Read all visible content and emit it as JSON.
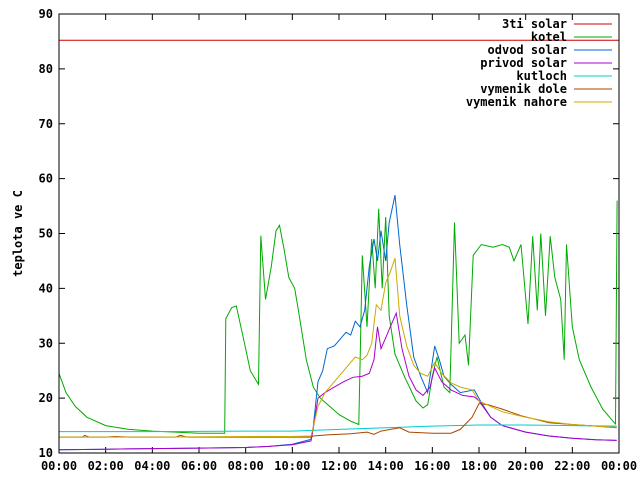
{
  "chart_data": {
    "type": "line",
    "title": "",
    "xlabel": "",
    "ylabel": "teplota ve C",
    "xlim": [
      "00:00",
      "24:00"
    ],
    "ylim": [
      10,
      90
    ],
    "grid": false,
    "legend_placement": "top-right",
    "x_ticks": [
      "00:00",
      "02:00",
      "04:00",
      "06:00",
      "08:00",
      "10:00",
      "12:00",
      "14:00",
      "16:00",
      "18:00",
      "20:00",
      "22:00",
      "00:00"
    ],
    "y_ticks": [
      10,
      20,
      30,
      40,
      50,
      60,
      70,
      80,
      90
    ],
    "series": [
      {
        "name": "3ti solar",
        "color": "#cc0000",
        "points": [
          [
            0,
            85.2
          ],
          [
            24,
            85.2
          ]
        ]
      },
      {
        "name": "kotel",
        "color": "#00aa00",
        "points": [
          [
            0,
            24.5
          ],
          [
            0.3,
            21
          ],
          [
            0.7,
            18.5
          ],
          [
            1.2,
            16.5
          ],
          [
            2,
            15
          ],
          [
            3,
            14.3
          ],
          [
            4,
            14
          ],
          [
            5,
            13.8
          ],
          [
            6,
            13.6
          ],
          [
            7.1,
            13.6
          ],
          [
            7.15,
            34.5
          ],
          [
            7.4,
            36.5
          ],
          [
            7.6,
            36.8
          ],
          [
            7.9,
            31
          ],
          [
            8.2,
            25
          ],
          [
            8.55,
            22.5
          ],
          [
            8.65,
            49.6
          ],
          [
            8.85,
            38
          ],
          [
            9.1,
            44
          ],
          [
            9.3,
            50.5
          ],
          [
            9.45,
            51.5
          ],
          [
            9.65,
            47
          ],
          [
            9.85,
            42
          ],
          [
            10.1,
            40
          ],
          [
            10.3,
            35
          ],
          [
            10.6,
            27
          ],
          [
            10.9,
            22
          ],
          [
            11.2,
            20
          ],
          [
            11.6,
            18.5
          ],
          [
            12,
            17
          ],
          [
            12.5,
            15.8
          ],
          [
            12.85,
            15.2
          ],
          [
            13,
            46
          ],
          [
            13.2,
            33
          ],
          [
            13.4,
            49
          ],
          [
            13.55,
            40
          ],
          [
            13.7,
            54.5
          ],
          [
            13.85,
            40
          ],
          [
            14,
            53
          ],
          [
            14.15,
            35
          ],
          [
            14.4,
            28
          ],
          [
            14.8,
            24
          ],
          [
            15.3,
            19.5
          ],
          [
            15.6,
            18.2
          ],
          [
            15.8,
            18.8
          ],
          [
            16,
            24
          ],
          [
            16.2,
            27.5
          ],
          [
            16.5,
            22
          ],
          [
            16.75,
            21
          ],
          [
            16.95,
            52
          ],
          [
            17.15,
            30
          ],
          [
            17.4,
            31.5
          ],
          [
            17.55,
            26
          ],
          [
            17.75,
            46
          ],
          [
            18.1,
            48
          ],
          [
            18.6,
            47.5
          ],
          [
            19,
            48
          ],
          [
            19.3,
            47.5
          ],
          [
            19.5,
            45
          ],
          [
            19.8,
            48
          ],
          [
            20.1,
            33.5
          ],
          [
            20.3,
            49.5
          ],
          [
            20.5,
            36
          ],
          [
            20.65,
            50
          ],
          [
            20.85,
            35
          ],
          [
            21.05,
            49.5
          ],
          [
            21.25,
            42
          ],
          [
            21.5,
            38
          ],
          [
            21.65,
            27
          ],
          [
            21.75,
            48
          ],
          [
            22,
            33
          ],
          [
            22.3,
            27
          ],
          [
            22.8,
            22
          ],
          [
            23.3,
            18
          ],
          [
            23.8,
            15.5
          ],
          [
            23.85,
            15.3
          ],
          [
            23.92,
            56
          ]
        ]
      },
      {
        "name": "odvod solar",
        "color": "#0066cc",
        "points": [
          [
            0,
            10.6
          ],
          [
            2,
            10.7
          ],
          [
            4,
            10.8
          ],
          [
            6,
            10.9
          ],
          [
            8,
            11
          ],
          [
            9,
            11.2
          ],
          [
            10,
            11.6
          ],
          [
            10.8,
            12.5
          ],
          [
            10.9,
            14.8
          ],
          [
            11.1,
            23
          ],
          [
            11.3,
            25
          ],
          [
            11.5,
            29
          ],
          [
            11.8,
            29.5
          ],
          [
            12.1,
            31
          ],
          [
            12.3,
            32
          ],
          [
            12.5,
            31.5
          ],
          [
            12.7,
            34
          ],
          [
            12.9,
            33
          ],
          [
            13.1,
            36
          ],
          [
            13.3,
            44
          ],
          [
            13.5,
            49
          ],
          [
            13.65,
            45
          ],
          [
            13.8,
            50.5
          ],
          [
            14,
            45
          ],
          [
            14.15,
            52
          ],
          [
            14.3,
            55
          ],
          [
            14.4,
            57
          ],
          [
            14.6,
            48
          ],
          [
            14.9,
            37
          ],
          [
            15.2,
            27.5
          ],
          [
            15.5,
            24
          ],
          [
            15.8,
            21
          ],
          [
            16.1,
            29.5
          ],
          [
            16.3,
            27
          ],
          [
            16.5,
            24
          ],
          [
            16.8,
            22.5
          ],
          [
            17.2,
            21
          ],
          [
            17.8,
            21.5
          ],
          [
            18.1,
            19.2
          ],
          [
            18.5,
            16.5
          ],
          [
            19,
            15
          ],
          [
            20,
            13.8
          ],
          [
            21,
            13.1
          ],
          [
            22,
            12.7
          ],
          [
            23,
            12.4
          ],
          [
            23.9,
            12.3
          ]
        ]
      },
      {
        "name": "privod solar",
        "color": "#aa00cc",
        "points": [
          [
            0,
            10.6
          ],
          [
            2,
            10.7
          ],
          [
            4,
            10.8
          ],
          [
            6,
            10.9
          ],
          [
            8,
            11
          ],
          [
            9,
            11.2
          ],
          [
            10,
            11.5
          ],
          [
            10.8,
            12.2
          ],
          [
            10.9,
            14.5
          ],
          [
            11.1,
            20
          ],
          [
            11.4,
            21
          ],
          [
            11.8,
            22
          ],
          [
            12.2,
            23
          ],
          [
            12.6,
            23.8
          ],
          [
            13,
            24
          ],
          [
            13.3,
            24.5
          ],
          [
            13.5,
            27
          ],
          [
            13.65,
            33
          ],
          [
            13.8,
            29
          ],
          [
            14,
            31
          ],
          [
            14.2,
            33
          ],
          [
            14.45,
            35.5
          ],
          [
            14.7,
            29
          ],
          [
            15,
            24
          ],
          [
            15.3,
            21.5
          ],
          [
            15.6,
            20.5
          ],
          [
            15.9,
            22
          ],
          [
            16.1,
            25.5
          ],
          [
            16.4,
            23
          ],
          [
            16.8,
            21.5
          ],
          [
            17.3,
            20.5
          ],
          [
            17.8,
            20.2
          ],
          [
            18,
            19.5
          ],
          [
            18.5,
            16.5
          ],
          [
            19,
            15
          ],
          [
            20,
            13.8
          ],
          [
            21,
            13.1
          ],
          [
            22,
            12.7
          ],
          [
            23,
            12.4
          ],
          [
            23.9,
            12.3
          ]
        ]
      },
      {
        "name": "kutloch",
        "color": "#00cccc",
        "points": [
          [
            0,
            13.9
          ],
          [
            4,
            13.9
          ],
          [
            8,
            14
          ],
          [
            10,
            14
          ],
          [
            12,
            14.3
          ],
          [
            14,
            14.6
          ],
          [
            16,
            14.9
          ],
          [
            18,
            15.1
          ],
          [
            20,
            15.1
          ],
          [
            22,
            15
          ],
          [
            23.9,
            14.9
          ]
        ]
      },
      {
        "name": "vymenik dole",
        "color": "#aa4400",
        "points": [
          [
            0,
            12.9
          ],
          [
            1,
            12.9
          ],
          [
            1.1,
            13.2
          ],
          [
            1.3,
            12.9
          ],
          [
            2,
            12.9
          ],
          [
            2.4,
            13
          ],
          [
            3,
            12.9
          ],
          [
            5,
            12.9
          ],
          [
            5.2,
            13.2
          ],
          [
            5.5,
            12.9
          ],
          [
            8,
            12.9
          ],
          [
            10,
            12.9
          ],
          [
            10.8,
            12.9
          ],
          [
            10.9,
            13.1
          ],
          [
            11.5,
            13.3
          ],
          [
            12.5,
            13.5
          ],
          [
            13.2,
            13.8
          ],
          [
            13.5,
            13.4
          ],
          [
            13.8,
            14
          ],
          [
            14.2,
            14.3
          ],
          [
            14.6,
            14.6
          ],
          [
            15,
            13.8
          ],
          [
            16,
            13.6
          ],
          [
            16.8,
            13.6
          ],
          [
            17.2,
            14.3
          ],
          [
            17.7,
            16.5
          ],
          [
            18,
            19
          ],
          [
            18.4,
            18.8
          ],
          [
            19,
            18
          ],
          [
            19.8,
            16.8
          ],
          [
            21,
            15.5
          ],
          [
            22,
            15.2
          ],
          [
            23,
            14.9
          ],
          [
            23.9,
            14.6
          ]
        ]
      },
      {
        "name": "vymenik nahore",
        "color": "#ccaa00",
        "points": [
          [
            0,
            12.9
          ],
          [
            4,
            12.9
          ],
          [
            8,
            13
          ],
          [
            10,
            13
          ],
          [
            10.8,
            13.1
          ],
          [
            10.9,
            14.8
          ],
          [
            11.1,
            18.5
          ],
          [
            11.4,
            21
          ],
          [
            11.8,
            23
          ],
          [
            12.3,
            25.5
          ],
          [
            12.7,
            27.5
          ],
          [
            13,
            27
          ],
          [
            13.2,
            27.8
          ],
          [
            13.4,
            30
          ],
          [
            13.6,
            37
          ],
          [
            13.8,
            36
          ],
          [
            14,
            41
          ],
          [
            14.2,
            43
          ],
          [
            14.4,
            45.5
          ],
          [
            14.6,
            35
          ],
          [
            14.9,
            29.5
          ],
          [
            15.2,
            26
          ],
          [
            15.5,
            24.5
          ],
          [
            15.8,
            24
          ],
          [
            16.1,
            26.5
          ],
          [
            16.4,
            24.5
          ],
          [
            16.8,
            22.8
          ],
          [
            17.2,
            22
          ],
          [
            17.7,
            21.5
          ],
          [
            18,
            19.5
          ],
          [
            18.5,
            18.5
          ],
          [
            19,
            17.5
          ],
          [
            20,
            16.5
          ],
          [
            21,
            15.7
          ],
          [
            22,
            15.2
          ],
          [
            23,
            14.9
          ],
          [
            23.9,
            14.7
          ]
        ]
      }
    ]
  }
}
